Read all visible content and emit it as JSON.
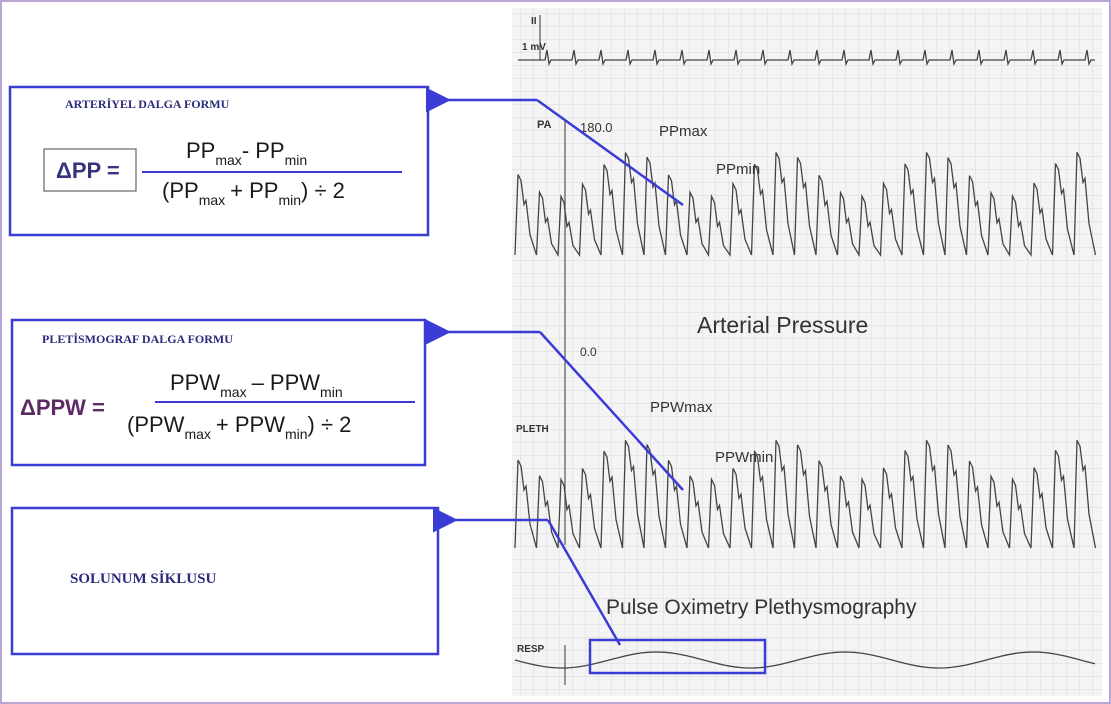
{
  "panels": [
    {
      "heading": "ARTERİYEL DALGA FORMU",
      "lhs": "ΔPP =",
      "numerator": [
        {
          "t": "PP"
        },
        {
          "sub": "max"
        },
        {
          "t": "- PP"
        },
        {
          "sub": "min"
        }
      ],
      "denominator": [
        {
          "t": "(PP"
        },
        {
          "sub": "max"
        },
        {
          "t": "+ PP"
        },
        {
          "sub": "min"
        },
        {
          "t": ") ÷ 2"
        }
      ]
    },
    {
      "heading": "PLETİSMOGRAF DALGA FORMU",
      "lhs": "ΔPPW =",
      "numerator": [
        {
          "t": "PPW"
        },
        {
          "sub": "max"
        },
        {
          "t": "– PPW"
        },
        {
          "sub": "min"
        }
      ],
      "denominator": [
        {
          "t": "(PPW"
        },
        {
          "sub": "max"
        },
        {
          "t": "+ PPW"
        },
        {
          "sub": "min"
        },
        {
          "t": ") ÷ 2"
        }
      ]
    },
    {
      "heading": "SOLUNUM SİKLUSU"
    }
  ],
  "strip": {
    "ecg_lead": "II",
    "ecg_scale": "1 mV",
    "pa_label": "PA",
    "pa_top": "180.0",
    "pa_bottom": "0.0",
    "pp_max": "PPmax",
    "pp_min": "PPmin",
    "arterial_title": "Arterial Pressure",
    "pleth_label": "PLETH",
    "ppw_max": "PPWmax",
    "ppw_min": "PPWmin",
    "pleth_title": "Pulse Oximetry Plethysmography",
    "resp_label": "RESP"
  }
}
